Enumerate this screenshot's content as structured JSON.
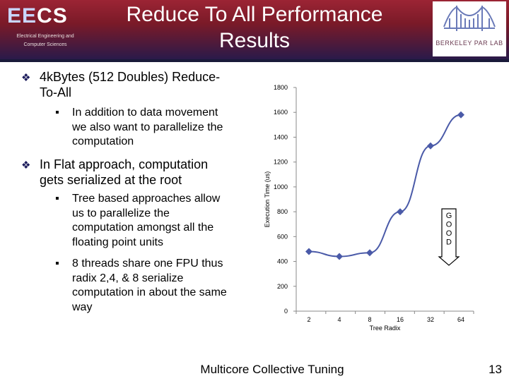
{
  "header": {
    "logo_ee": "EE",
    "logo_cs": "CS",
    "logo_sub1": "Electrical Engineering and",
    "logo_sub2": "Computer Sciences",
    "title_line1": "Reduce To All Performance",
    "title_line2": "Results",
    "parlab_label": "BERKELEY PAR LAB",
    "bar_color": "#7a1a28"
  },
  "bullets": [
    {
      "level": 1,
      "icon": "diamond-arrow-bullet",
      "lines": [
        "4kBytes (512 Doubles) Reduce-",
        "To-All"
      ]
    },
    {
      "level": 2,
      "icon": "square-bullet",
      "lines": [
        "In addition to data movement",
        "we also want to parallelize the",
        "computation"
      ]
    },
    {
      "level": 1,
      "icon": "diamond-arrow-bullet",
      "lines": [
        "In Flat approach, computation",
        "gets serialized at the root"
      ]
    },
    {
      "level": 2,
      "icon": "square-bullet",
      "lines": [
        "Tree based approaches allow",
        "us to parallelize the",
        "computation amongst all the",
        "floating point units"
      ]
    },
    {
      "level": 2,
      "icon": "square-bullet",
      "lines": [
        "8 threads share one FPU thus",
        "radix 2,4, & 8 serialize",
        "computation in about the same",
        "way"
      ]
    }
  ],
  "chart_data": {
    "type": "line",
    "categories": [
      "2",
      "4",
      "8",
      "16",
      "32",
      "64"
    ],
    "series": [
      {
        "values": [
          480,
          440,
          470,
          800,
          1330,
          1580
        ],
        "color": "#4a5aa8"
      }
    ],
    "xlabel": "Tree Radix",
    "ylabel": "Execution Time (us)",
    "ylim": [
      0,
      1800
    ],
    "yticks": [
      0,
      200,
      400,
      600,
      800,
      1000,
      1200,
      1400,
      1600,
      1800
    ],
    "grid": false,
    "annotation": {
      "letters": [
        "G",
        "O",
        "O",
        "D"
      ],
      "icon": "down-arrow"
    }
  },
  "footer": {
    "text": "Multicore Collective Tuning",
    "page": "13"
  }
}
